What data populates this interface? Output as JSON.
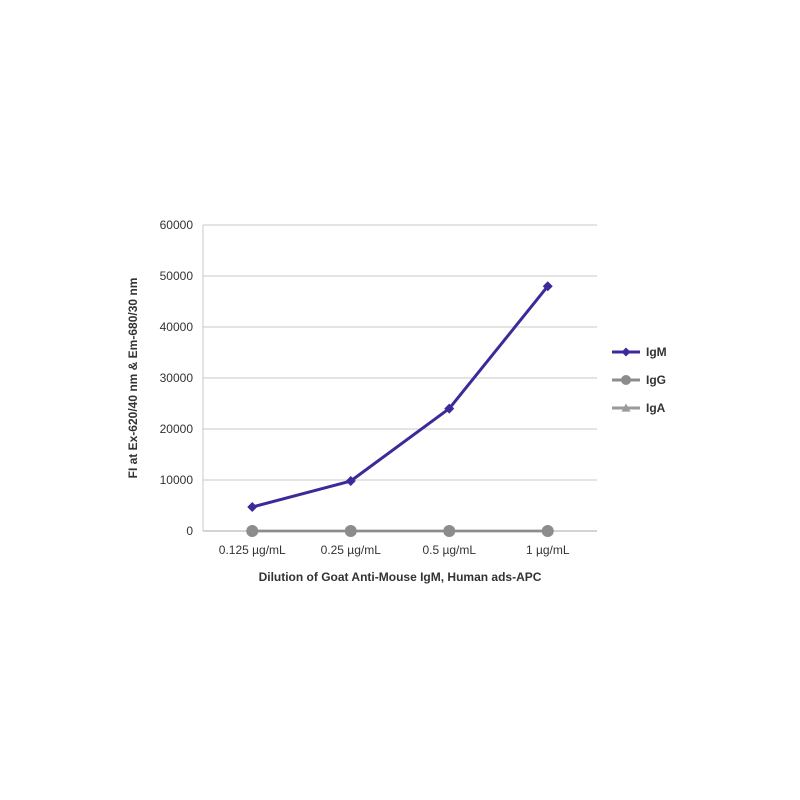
{
  "chart_data": {
    "type": "line",
    "title": "",
    "xlabel": "Dilution of Goat Anti-Mouse IgM, Human ads-APC",
    "ylabel": "FI at Ex-620/40 nm & Em-680/30 nm",
    "categories": [
      "0.125 µg/mL",
      "0.25 µg/mL",
      "0.5 µg/mL",
      "1 µg/mL"
    ],
    "ylim": [
      0,
      60000
    ],
    "yticks": [
      "0",
      "10000",
      "20000",
      "30000",
      "40000",
      "50000",
      "60000"
    ],
    "grid": true,
    "legend": "right",
    "series": [
      {
        "name": "IgM",
        "values": [
          4700,
          9800,
          24000,
          48000
        ],
        "color": "#3b2a9a",
        "marker": "diamond"
      },
      {
        "name": "IgG",
        "values": [
          0,
          0,
          0,
          0
        ],
        "color": "#8c8c8c",
        "marker": "circle"
      },
      {
        "name": "IgA",
        "values": [
          0,
          0,
          0,
          0
        ],
        "color": "#9a9a9a",
        "marker": "triangle"
      }
    ]
  }
}
